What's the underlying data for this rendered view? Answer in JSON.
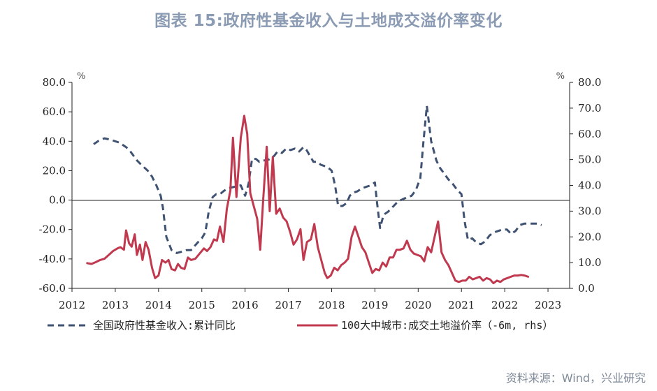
{
  "title": "图表 15:政府性基金收入与土地成交溢价率变化",
  "source": "资料来源：Wind，兴业研究",
  "chart_data": {
    "type": "line",
    "x_range": [
      2012.0,
      2023.5
    ],
    "x_ticks": [
      "2012",
      "2013",
      "2014",
      "2015",
      "2016",
      "2017",
      "2018",
      "2019",
      "2020",
      "2021",
      "2022",
      "2023"
    ],
    "left_axis": {
      "unit": "%",
      "ylim": [
        -60,
        80
      ],
      "ticks": [
        "80.0",
        "60.0",
        "40.0",
        "20.0",
        "0.0",
        "-20.0",
        "-40.0",
        "-60.0"
      ],
      "tick_values": [
        80,
        60,
        40,
        20,
        0,
        -20,
        -40,
        -60
      ]
    },
    "right_axis": {
      "unit": "%",
      "ylim": [
        0,
        80
      ],
      "ticks": [
        "80.0",
        "70.0",
        "60.0",
        "50.0",
        "40.0",
        "30.0",
        "20.0",
        "10.0",
        "0.0"
      ],
      "tick_values": [
        80,
        70,
        60,
        50,
        40,
        30,
        20,
        10,
        0
      ]
    },
    "series": [
      {
        "name": "全国政府性基金收入:累计同比",
        "axis": "left",
        "color": "#3f5272",
        "dash": true,
        "points": [
          [
            2012.5,
            38
          ],
          [
            2012.6,
            40
          ],
          [
            2012.75,
            42
          ],
          [
            2012.9,
            41
          ],
          [
            2013.1,
            39
          ],
          [
            2013.25,
            36
          ],
          [
            2013.35,
            33
          ],
          [
            2013.5,
            27
          ],
          [
            2013.6,
            24
          ],
          [
            2013.75,
            20
          ],
          [
            2013.85,
            16
          ],
          [
            2013.95,
            10
          ],
          [
            2014.05,
            3
          ],
          [
            2014.1,
            -5
          ],
          [
            2014.18,
            -25
          ],
          [
            2014.3,
            -34
          ],
          [
            2014.42,
            -36
          ],
          [
            2014.55,
            -35
          ],
          [
            2014.65,
            -34
          ],
          [
            2014.75,
            -34
          ],
          [
            2014.9,
            -29
          ],
          [
            2015.0,
            -26
          ],
          [
            2015.08,
            -22
          ],
          [
            2015.16,
            -8
          ],
          [
            2015.25,
            2
          ],
          [
            2015.33,
            4
          ],
          [
            2015.42,
            4
          ],
          [
            2015.5,
            6
          ],
          [
            2015.6,
            8
          ],
          [
            2015.75,
            9
          ],
          [
            2015.9,
            10
          ],
          [
            2016.0,
            3
          ],
          [
            2016.08,
            11
          ],
          [
            2016.16,
            28
          ],
          [
            2016.25,
            28
          ],
          [
            2016.33,
            26
          ],
          [
            2016.42,
            27
          ],
          [
            2016.5,
            27
          ],
          [
            2016.58,
            28
          ],
          [
            2016.67,
            30
          ],
          [
            2016.75,
            33
          ],
          [
            2016.85,
            32
          ],
          [
            2016.95,
            35
          ],
          [
            2017.05,
            34
          ],
          [
            2017.15,
            35
          ],
          [
            2017.25,
            33
          ],
          [
            2017.35,
            36
          ],
          [
            2017.42,
            34
          ],
          [
            2017.5,
            30
          ],
          [
            2017.58,
            26
          ],
          [
            2017.67,
            26
          ],
          [
            2017.75,
            24
          ],
          [
            2017.85,
            23
          ],
          [
            2017.92,
            22
          ],
          [
            2018.0,
            20
          ],
          [
            2018.08,
            10
          ],
          [
            2018.15,
            -4
          ],
          [
            2018.25,
            -4
          ],
          [
            2018.35,
            -2
          ],
          [
            2018.42,
            3
          ],
          [
            2018.5,
            5
          ],
          [
            2018.6,
            6
          ],
          [
            2018.7,
            8
          ],
          [
            2018.8,
            9
          ],
          [
            2018.9,
            10
          ],
          [
            2019.0,
            12
          ],
          [
            2019.05,
            -2
          ],
          [
            2019.12,
            -19
          ],
          [
            2019.2,
            -10
          ],
          [
            2019.3,
            -8
          ],
          [
            2019.4,
            -5
          ],
          [
            2019.5,
            -2
          ],
          [
            2019.6,
            0
          ],
          [
            2019.75,
            2
          ],
          [
            2019.85,
            3
          ],
          [
            2019.95,
            7
          ],
          [
            2020.05,
            15
          ],
          [
            2020.12,
            39
          ],
          [
            2020.2,
            64
          ],
          [
            2020.3,
            40
          ],
          [
            2020.42,
            27
          ],
          [
            2020.5,
            22
          ],
          [
            2020.6,
            18
          ],
          [
            2020.7,
            14
          ],
          [
            2020.8,
            11
          ],
          [
            2020.9,
            7
          ],
          [
            2021.0,
            4
          ],
          [
            2021.07,
            -14
          ],
          [
            2021.15,
            -27
          ],
          [
            2021.25,
            -26
          ],
          [
            2021.35,
            -29
          ],
          [
            2021.45,
            -30
          ],
          [
            2021.55,
            -28
          ],
          [
            2021.65,
            -24
          ],
          [
            2021.75,
            -22
          ],
          [
            2021.85,
            -21
          ],
          [
            2021.95,
            -20
          ],
          [
            2022.05,
            -20
          ],
          [
            2022.15,
            -23
          ],
          [
            2022.25,
            -21
          ],
          [
            2022.35,
            -17
          ],
          [
            2022.45,
            -16
          ],
          [
            2022.55,
            -16
          ],
          [
            2022.65,
            -16
          ],
          [
            2022.75,
            -16
          ],
          [
            2022.85,
            -17
          ]
        ]
      },
      {
        "name": "100大中城市:成交土地溢价率（-6m, rhs）",
        "axis": "right",
        "color": "#c0394f",
        "dash": false,
        "points": [
          [
            2012.35,
            9.8
          ],
          [
            2012.45,
            9.5
          ],
          [
            2012.55,
            10.2
          ],
          [
            2012.65,
            11
          ],
          [
            2012.75,
            11.5
          ],
          [
            2012.85,
            13
          ],
          [
            2012.95,
            14.5
          ],
          [
            2013.05,
            15.5
          ],
          [
            2013.12,
            16
          ],
          [
            2013.2,
            15
          ],
          [
            2013.25,
            22.5
          ],
          [
            2013.32,
            17.5
          ],
          [
            2013.38,
            16.2
          ],
          [
            2013.45,
            21
          ],
          [
            2013.5,
            13
          ],
          [
            2013.57,
            17
          ],
          [
            2013.63,
            11
          ],
          [
            2013.7,
            18
          ],
          [
            2013.77,
            15
          ],
          [
            2013.85,
            8
          ],
          [
            2013.92,
            4
          ],
          [
            2014.0,
            5
          ],
          [
            2014.08,
            11
          ],
          [
            2014.16,
            10
          ],
          [
            2014.23,
            11
          ],
          [
            2014.3,
            7.5
          ],
          [
            2014.38,
            7
          ],
          [
            2014.45,
            9.5
          ],
          [
            2014.52,
            8
          ],
          [
            2014.6,
            7.5
          ],
          [
            2014.68,
            12
          ],
          [
            2014.75,
            11
          ],
          [
            2014.85,
            11.5
          ],
          [
            2014.95,
            13.5
          ],
          [
            2015.05,
            15.5
          ],
          [
            2015.12,
            14.5
          ],
          [
            2015.2,
            16
          ],
          [
            2015.28,
            19
          ],
          [
            2015.35,
            18.5
          ],
          [
            2015.42,
            24
          ],
          [
            2015.5,
            18
          ],
          [
            2015.58,
            31
          ],
          [
            2015.66,
            38
          ],
          [
            2015.72,
            58.5
          ],
          [
            2015.8,
            35.5
          ],
          [
            2015.9,
            58.5
          ],
          [
            2015.98,
            67
          ],
          [
            2016.05,
            60
          ],
          [
            2016.12,
            37
          ],
          [
            2016.2,
            32
          ],
          [
            2016.28,
            27
          ],
          [
            2016.35,
            15
          ],
          [
            2016.42,
            35
          ],
          [
            2016.5,
            55
          ],
          [
            2016.57,
            30
          ],
          [
            2016.64,
            51
          ],
          [
            2016.72,
            29
          ],
          [
            2016.8,
            31
          ],
          [
            2016.88,
            27.5
          ],
          [
            2016.96,
            26
          ],
          [
            2017.04,
            22
          ],
          [
            2017.12,
            17
          ],
          [
            2017.2,
            19
          ],
          [
            2017.28,
            23
          ],
          [
            2017.35,
            11
          ],
          [
            2017.43,
            18
          ],
          [
            2017.52,
            19
          ],
          [
            2017.6,
            25
          ],
          [
            2017.68,
            16
          ],
          [
            2017.76,
            11
          ],
          [
            2017.84,
            6
          ],
          [
            2017.9,
            4
          ],
          [
            2017.98,
            5
          ],
          [
            2018.06,
            8
          ],
          [
            2018.14,
            7
          ],
          [
            2018.22,
            9
          ],
          [
            2018.3,
            10
          ],
          [
            2018.38,
            11.5
          ],
          [
            2018.46,
            20
          ],
          [
            2018.54,
            24
          ],
          [
            2018.62,
            20
          ],
          [
            2018.7,
            16
          ],
          [
            2018.78,
            14
          ],
          [
            2018.86,
            10
          ],
          [
            2018.94,
            6
          ],
          [
            2019.02,
            7.5
          ],
          [
            2019.1,
            7
          ],
          [
            2019.18,
            10
          ],
          [
            2019.26,
            8.5
          ],
          [
            2019.34,
            12
          ],
          [
            2019.42,
            12
          ],
          [
            2019.5,
            15
          ],
          [
            2019.58,
            15
          ],
          [
            2019.66,
            15.5
          ],
          [
            2019.74,
            18.5
          ],
          [
            2019.82,
            15
          ],
          [
            2019.9,
            13.5
          ],
          [
            2019.98,
            13
          ],
          [
            2020.06,
            12.5
          ],
          [
            2020.14,
            10.5
          ],
          [
            2020.22,
            16
          ],
          [
            2020.3,
            14
          ],
          [
            2020.38,
            20
          ],
          [
            2020.46,
            26
          ],
          [
            2020.54,
            14
          ],
          [
            2020.62,
            11
          ],
          [
            2020.7,
            9
          ],
          [
            2020.78,
            6
          ],
          [
            2020.86,
            3
          ],
          [
            2020.94,
            2.5
          ],
          [
            2021.02,
            3
          ],
          [
            2021.1,
            3
          ],
          [
            2021.18,
            4.5
          ],
          [
            2021.26,
            3.5
          ],
          [
            2021.34,
            4
          ],
          [
            2021.42,
            4.5
          ],
          [
            2021.5,
            3
          ],
          [
            2021.58,
            4
          ],
          [
            2021.66,
            3.5
          ],
          [
            2021.74,
            2
          ],
          [
            2021.82,
            3
          ],
          [
            2021.9,
            2.5
          ],
          [
            2021.98,
            3.5
          ],
          [
            2022.06,
            4
          ],
          [
            2022.14,
            4.5
          ],
          [
            2022.22,
            5
          ],
          [
            2022.3,
            5
          ],
          [
            2022.38,
            5.2
          ],
          [
            2022.46,
            5
          ],
          [
            2022.54,
            4.5
          ]
        ]
      }
    ],
    "legend": [
      {
        "label": "全国政府性基金收入:累计同比",
        "style": "dashed"
      },
      {
        "label": "100大中城市:成交土地溢价率（-6m, rhs）",
        "style": "solid"
      }
    ]
  }
}
